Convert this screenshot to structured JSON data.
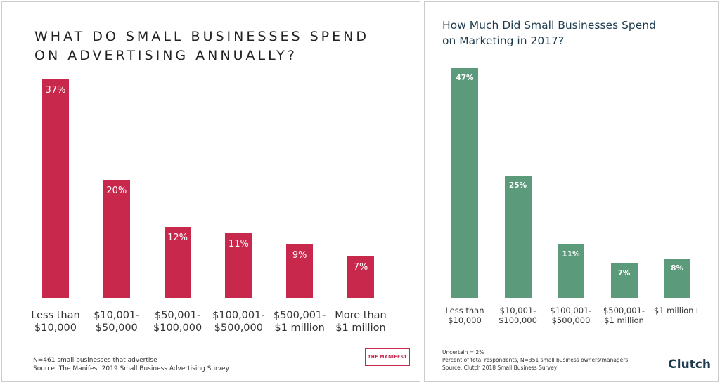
{
  "chart_data": [
    {
      "type": "bar",
      "title": "WHAT DO SMALL BUSINESSES SPEND\nON ADVERTISING ANNUALLY?",
      "categories": [
        "Less than\n$10,000",
        "$10,001-\n$50,000",
        "$50,001-\n$100,000",
        "$100,001-\n$500,000",
        "$500,001-\n$1 million",
        "More than\n$1 million"
      ],
      "values": [
        37,
        20,
        12,
        11,
        9,
        7
      ],
      "value_labels": [
        "37%",
        "20%",
        "12%",
        "11%",
        "9%",
        "7%"
      ],
      "color": "#c9284d",
      "notes": [
        "N=461 small businesses that advertise",
        "Source: The Manifest 2019 Small Business Advertising Survey"
      ],
      "logo": "THE MANIFEST"
    },
    {
      "type": "bar",
      "title": "How Much Did Small Businesses Spend\non Marketing in 2017?",
      "categories": [
        "Less than\n$10,000",
        "$10,001-\n$100,000",
        "$100,001-\n$500,000",
        "$500,001-\n$1 million",
        "$1 million+"
      ],
      "values": [
        47,
        25,
        11,
        7,
        8
      ],
      "value_labels": [
        "47%",
        "25%",
        "11%",
        "7%",
        "8%"
      ],
      "color": "#5c9a7c",
      "notes": [
        "Uncertain = 2%",
        "Percent of total respondents, N=351 small business owners/managers",
        "Source: Clutch 2018 Small Business Survey"
      ],
      "logo": "Clutch"
    }
  ]
}
